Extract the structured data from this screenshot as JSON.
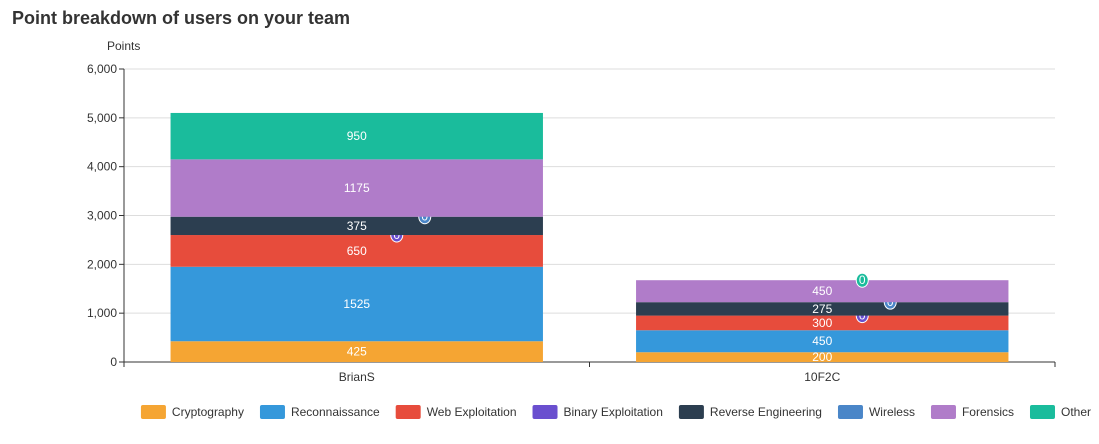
{
  "chart_data": {
    "type": "bar",
    "stacked": true,
    "title": "Point breakdown of users on your team",
    "ylabel": "Points",
    "xlabel": "",
    "ylim": [
      0,
      6000
    ],
    "yticks": [
      "0",
      "1,000",
      "2,000",
      "3,000",
      "4,000",
      "5,000",
      "6,000"
    ],
    "ytick_values": [
      0,
      1000,
      2000,
      3000,
      4000,
      5000,
      6000
    ],
    "grid": true,
    "legend_position": "bottom",
    "categories": [
      "BrianS",
      "10F2C"
    ],
    "series": [
      {
        "name": "Cryptography",
        "color": "#f5a533",
        "values": [
          425,
          200
        ]
      },
      {
        "name": "Reconnaissance",
        "color": "#3598db",
        "values": [
          1525,
          450
        ]
      },
      {
        "name": "Web Exploitation",
        "color": "#e74c3c",
        "values": [
          650,
          300
        ]
      },
      {
        "name": "Binary Exploitation",
        "color": "#6a4fcf",
        "values": [
          0,
          0
        ]
      },
      {
        "name": "Reverse Engineering",
        "color": "#2c3e50",
        "values": [
          375,
          275
        ]
      },
      {
        "name": "Wireless",
        "color": "#4a86c8",
        "values": [
          0,
          0
        ]
      },
      {
        "name": "Forensics",
        "color": "#b07cc9",
        "values": [
          1175,
          450
        ]
      },
      {
        "name": "Other",
        "color": "#1abc9c",
        "values": [
          950,
          0
        ]
      }
    ]
  }
}
